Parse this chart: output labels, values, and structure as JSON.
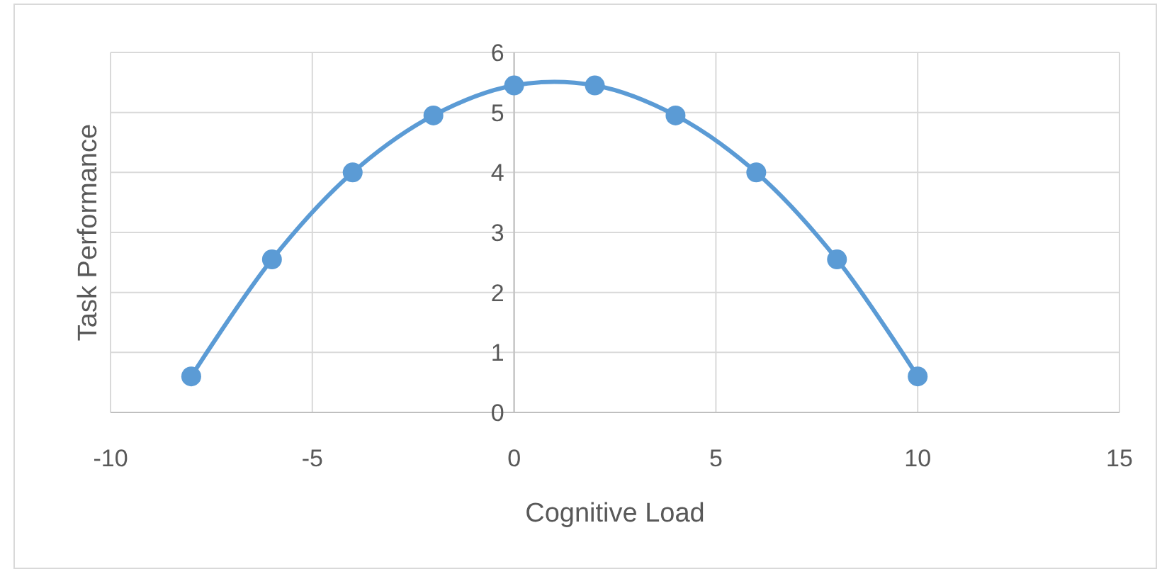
{
  "chart_data": {
    "type": "line",
    "xlabel": "Cognitive Load",
    "ylabel": "Task Performance",
    "x": [
      -8,
      -6,
      -4,
      -2,
      0,
      2,
      4,
      6,
      8,
      10
    ],
    "series": [
      {
        "color": "#5b9bd5",
        "values": [
          0.6,
          2.55,
          4.0,
          4.95,
          5.45,
          5.45,
          4.95,
          4.0,
          2.55,
          0.6
        ]
      }
    ],
    "xlim": [
      -10,
      15
    ],
    "xticks": [
      -10,
      -5,
      0,
      5,
      10,
      15
    ],
    "ylim": [
      0,
      6
    ],
    "yticks": [
      0,
      1,
      2,
      3,
      4,
      5,
      6
    ],
    "grid": true,
    "marker": "circle",
    "line_style": "solid"
  }
}
